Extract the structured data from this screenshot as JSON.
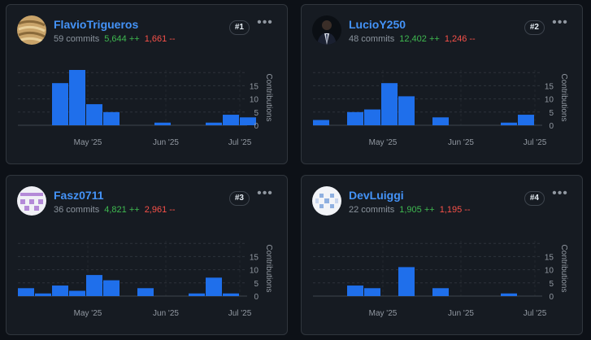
{
  "contributors": [
    {
      "username": "FlavioTrigueros",
      "commits": "59 commits",
      "additions": "5,644 ++",
      "deletions": "1,661 --",
      "rank": "#1",
      "avatar_icon": "wheat-avatar-icon",
      "chart_data": {
        "type": "bar",
        "ylabel": "Contributions",
        "x_ticks": [
          "May '25",
          "Jun '25",
          "Jul '25"
        ],
        "y_ticks": [
          0,
          5,
          10,
          15
        ],
        "ylim": [
          0,
          21
        ],
        "values": [
          0,
          0,
          16,
          21,
          8,
          5,
          0,
          0,
          1,
          0,
          0,
          1,
          4,
          3
        ],
        "color": "#1f6feb"
      }
    },
    {
      "username": "LucioY250",
      "commits": "48 commits",
      "additions": "12,402 ++",
      "deletions": "1,246 --",
      "rank": "#2",
      "avatar_icon": "person-photo-avatar-icon",
      "chart_data": {
        "type": "bar",
        "ylabel": "Contributions",
        "x_ticks": [
          "May '25",
          "Jun '25",
          "Jul '25"
        ],
        "y_ticks": [
          0,
          5,
          10,
          15
        ],
        "ylim": [
          0,
          21
        ],
        "values": [
          2,
          0,
          5,
          6,
          16,
          11,
          0,
          3,
          0,
          0,
          0,
          1,
          4
        ],
        "color": "#1f6feb"
      }
    },
    {
      "username": "Fasz0711",
      "commits": "36 commits",
      "additions": "4,821 ++",
      "deletions": "2,961 --",
      "rank": "#3",
      "avatar_icon": "pixel-pattern-avatar-icon",
      "chart_data": {
        "type": "bar",
        "ylabel": "Contributions",
        "x_ticks": [
          "May '25",
          "Jun '25",
          "Jul '25"
        ],
        "y_ticks": [
          0,
          5,
          10,
          15
        ],
        "ylim": [
          0,
          21
        ],
        "values": [
          3,
          1,
          4,
          2,
          8,
          6,
          0,
          3,
          0,
          0,
          1,
          7,
          1
        ],
        "color": "#1f6feb"
      }
    },
    {
      "username": "DevLuiggi",
      "commits": "22 commits",
      "additions": "1,905 ++",
      "deletions": "1,195 --",
      "rank": "#4",
      "avatar_icon": "pixel-blocks-avatar-icon",
      "chart_data": {
        "type": "bar",
        "ylabel": "Contributions",
        "x_ticks": [
          "May '25",
          "Jun '25",
          "Jul '25"
        ],
        "y_ticks": [
          0,
          5,
          10,
          15
        ],
        "ylim": [
          0,
          21
        ],
        "values": [
          0,
          0,
          4,
          3,
          0,
          11,
          0,
          3,
          0,
          0,
          0,
          1
        ],
        "color": "#1f6feb"
      }
    }
  ],
  "menu_icon": "kebab-menu-icon"
}
